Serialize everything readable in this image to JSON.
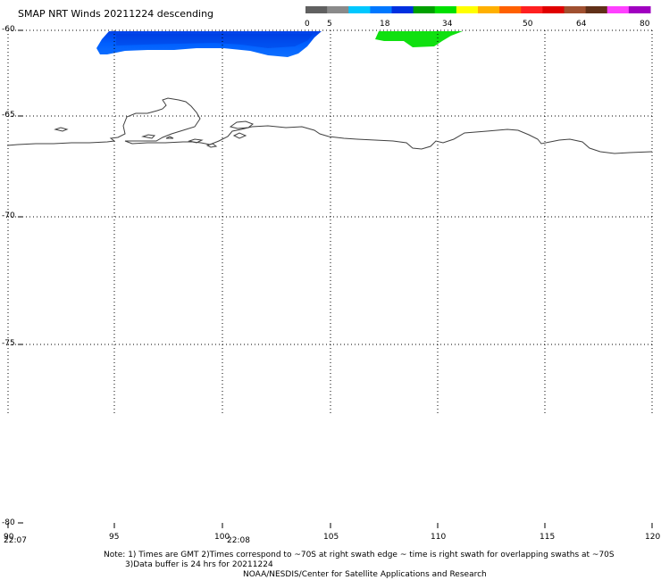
{
  "header": {
    "title": "SMAP NRT Winds  20211224 descending"
  },
  "colorbar": {
    "labels": [
      "0",
      "5",
      "18",
      "34",
      "50",
      "64",
      "80"
    ],
    "colors": [
      "#606060",
      "#8a8a8a",
      "#00c8ff",
      "#0078ff",
      "#0030e0",
      "#00a000",
      "#00e000",
      "#ffff00",
      "#ffb000",
      "#ff6000",
      "#ff2020",
      "#e00000",
      "#a05030",
      "#603018",
      "#ff40ff",
      "#a000c0"
    ]
  },
  "map": {
    "lat_labels": [
      "-60",
      "-65",
      "-70",
      "-75",
      "-80"
    ],
    "lon_labels": [
      "90",
      "95",
      "100",
      "105",
      "110",
      "115",
      "120"
    ],
    "time_labels": [
      "22:07",
      "22:08"
    ],
    "coastline_color": "#404040",
    "grid_color": "#000000",
    "swath_colors": {
      "low_wind": "#0050f0",
      "moderate_wind": "#10e010"
    }
  },
  "footer": {
    "note_line1": "Note: 1) Times are GMT 2)Times correspond to ~70S at right swath edge ~ time is right swath for overlapping swaths at ~70S",
    "note_line2": "3)Data buffer is 24 hrs for 20211224",
    "credit": "NOAA/NESDIS/Center for Satellite Applications and Research"
  }
}
